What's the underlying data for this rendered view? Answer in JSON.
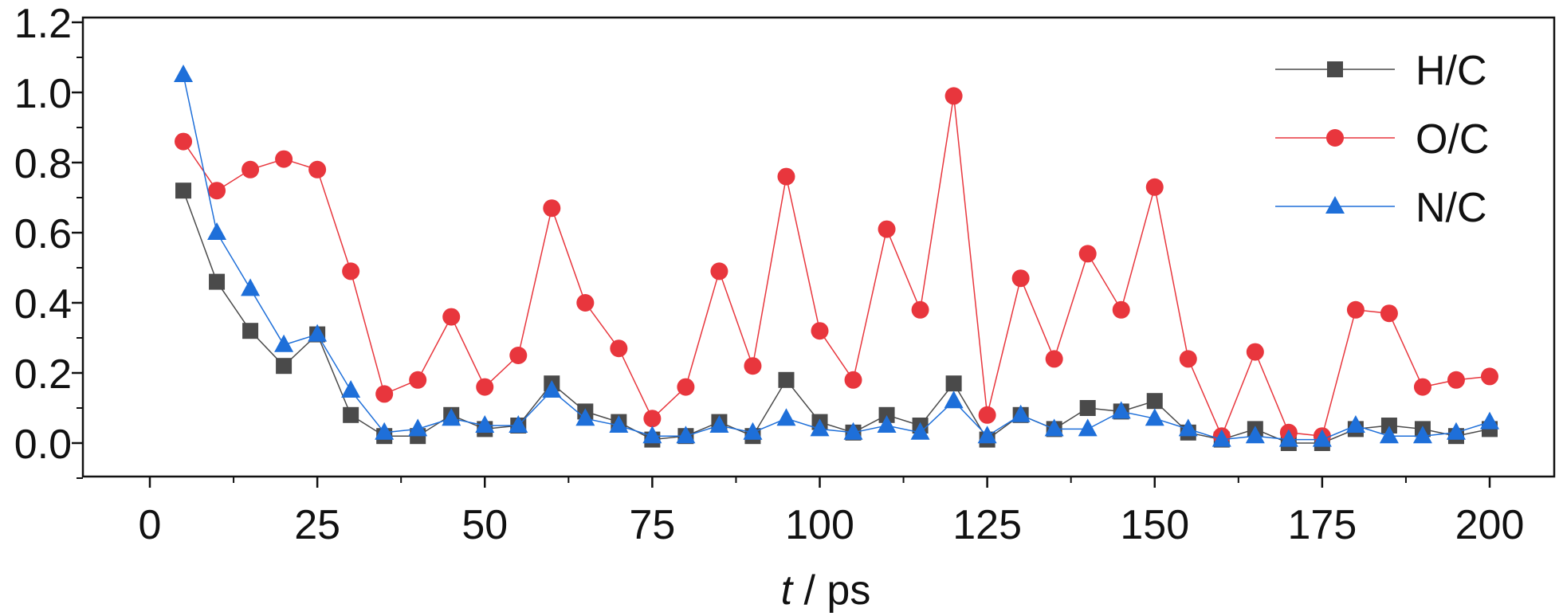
{
  "chart_data": {
    "type": "line",
    "title": "",
    "xlabel_italic": "t",
    "xlabel_rest": " / ps",
    "ylabel": "",
    "xlim": [
      -10,
      210
    ],
    "ylim": [
      -0.1,
      1.2
    ],
    "xticks": [
      0,
      25,
      50,
      75,
      100,
      125,
      150,
      175,
      200
    ],
    "yticks": [
      0.0,
      0.2,
      0.4,
      0.6,
      0.8,
      1.0,
      1.2
    ],
    "grid": false,
    "legend_position": "top-right",
    "x": [
      5,
      10,
      15,
      20,
      25,
      30,
      35,
      40,
      45,
      50,
      55,
      60,
      65,
      70,
      75,
      80,
      85,
      90,
      95,
      100,
      105,
      110,
      115,
      120,
      125,
      130,
      135,
      140,
      145,
      150,
      155,
      160,
      165,
      170,
      175,
      180,
      185,
      190,
      195,
      200
    ],
    "series": [
      {
        "name": "H/C",
        "color": "#4a4a4a",
        "marker": "square",
        "values": [
          0.72,
          0.46,
          0.32,
          0.22,
          0.31,
          0.08,
          0.02,
          0.02,
          0.08,
          0.04,
          0.05,
          0.17,
          0.09,
          0.06,
          0.01,
          0.02,
          0.06,
          0.02,
          0.18,
          0.06,
          0.03,
          0.08,
          0.05,
          0.17,
          0.01,
          0.08,
          0.04,
          0.1,
          0.09,
          0.12,
          0.03,
          0.01,
          0.04,
          0.0,
          0.0,
          0.04,
          0.05,
          0.04,
          0.02,
          0.04
        ]
      },
      {
        "name": "O/C",
        "color": "#e8363d",
        "marker": "circle",
        "values": [
          0.86,
          0.72,
          0.78,
          0.81,
          0.78,
          0.49,
          0.14,
          0.18,
          0.36,
          0.16,
          0.25,
          0.67,
          0.4,
          0.27,
          0.07,
          0.16,
          0.49,
          0.22,
          0.76,
          0.32,
          0.18,
          0.61,
          0.38,
          0.99,
          0.08,
          0.47,
          0.24,
          0.54,
          0.38,
          0.73,
          0.24,
          0.02,
          0.26,
          0.03,
          0.02,
          0.38,
          0.37,
          0.16,
          0.18,
          0.19
        ]
      },
      {
        "name": "N/C",
        "color": "#1e6fd9",
        "marker": "triangle",
        "values": [
          1.05,
          0.6,
          0.44,
          0.28,
          0.31,
          0.15,
          0.03,
          0.04,
          0.07,
          0.05,
          0.05,
          0.15,
          0.07,
          0.05,
          0.02,
          0.02,
          0.05,
          0.03,
          0.07,
          0.04,
          0.03,
          0.05,
          0.03,
          0.12,
          0.02,
          0.08,
          0.04,
          0.04,
          0.09,
          0.07,
          0.04,
          0.01,
          0.02,
          0.01,
          0.01,
          0.05,
          0.02,
          0.02,
          0.03,
          0.06
        ]
      }
    ]
  }
}
